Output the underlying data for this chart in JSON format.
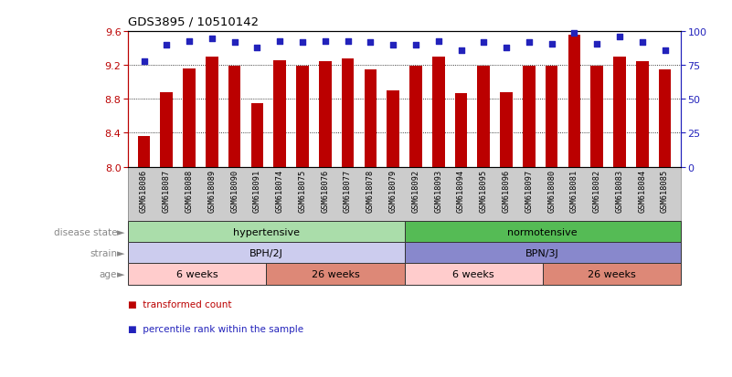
{
  "title": "GDS3895 / 10510142",
  "samples": [
    "GSM618086",
    "GSM618087",
    "GSM618088",
    "GSM618089",
    "GSM618090",
    "GSM618091",
    "GSM618074",
    "GSM618075",
    "GSM618076",
    "GSM618077",
    "GSM618078",
    "GSM618079",
    "GSM618092",
    "GSM618093",
    "GSM618094",
    "GSM618095",
    "GSM618096",
    "GSM618097",
    "GSM618080",
    "GSM618081",
    "GSM618082",
    "GSM618083",
    "GSM618084",
    "GSM618085"
  ],
  "bar_values": [
    8.36,
    8.88,
    9.16,
    9.3,
    9.19,
    8.75,
    9.26,
    9.19,
    9.25,
    9.28,
    9.15,
    8.9,
    9.19,
    9.3,
    8.87,
    9.19,
    8.88,
    9.19,
    9.19,
    9.56,
    9.19,
    9.3,
    9.25,
    9.15
  ],
  "percentile_values": [
    78,
    90,
    93,
    95,
    92,
    88,
    93,
    92,
    93,
    93,
    92,
    90,
    90,
    93,
    86,
    92,
    88,
    92,
    91,
    99,
    91,
    96,
    92,
    86
  ],
  "bar_color": "#bb0000",
  "dot_color": "#2222bb",
  "ylim_left": [
    8.0,
    9.6
  ],
  "ylim_right": [
    0,
    100
  ],
  "yticks_left": [
    8.0,
    8.4,
    8.8,
    9.2,
    9.6
  ],
  "yticks_right": [
    0,
    25,
    50,
    75,
    100
  ],
  "grid_values": [
    8.4,
    8.8,
    9.2
  ],
  "legend_items": [
    "transformed count",
    "percentile rank within the sample"
  ],
  "legend_colors": [
    "#bb0000",
    "#2222bb"
  ],
  "bg_color": "#ffffff",
  "label_color": "#888888",
  "xlbl_bg": "#cccccc",
  "disease_color_hyper": "#aaddaa",
  "disease_color_normo": "#55bb55",
  "strain_color_bph": "#ccccee",
  "strain_color_bpn": "#8888cc",
  "age_color_light": "#ffcccc",
  "age_color_dark": "#dd8877"
}
